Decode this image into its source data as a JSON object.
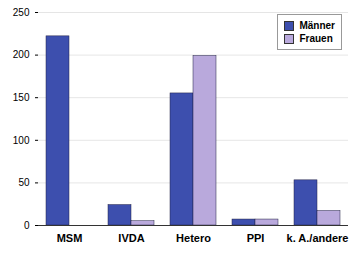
{
  "chart_data": {
    "type": "bar",
    "categories": [
      "MSM",
      "IVDA",
      "Hetero",
      "PPI",
      "k. A./andere"
    ],
    "series": [
      {
        "name": "Männer",
        "color": "#3d4fae",
        "values": [
          222,
          24,
          155,
          7,
          53
        ]
      },
      {
        "name": "Frauen",
        "color": "#b9a9dc",
        "values": [
          0,
          5,
          199,
          7,
          17
        ]
      }
    ],
    "ylim": [
      0,
      250
    ],
    "yticks": [
      0,
      50,
      100,
      150,
      200,
      250
    ],
    "grid": true,
    "legend": "top-right"
  }
}
